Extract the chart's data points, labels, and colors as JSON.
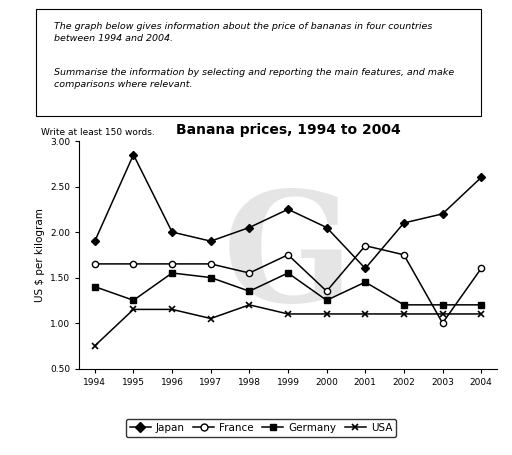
{
  "title": "Banana prices, 1994 to 2004",
  "ylabel": "US $ per kilogram",
  "years": [
    1994,
    1995,
    1996,
    1997,
    1998,
    1999,
    2000,
    2001,
    2002,
    2003,
    2004
  ],
  "japan": [
    1.9,
    2.85,
    2.0,
    1.9,
    2.05,
    2.25,
    2.05,
    1.6,
    2.1,
    2.2,
    2.6
  ],
  "france": [
    1.65,
    1.65,
    1.65,
    1.65,
    1.55,
    1.75,
    1.35,
    1.85,
    1.75,
    1.0,
    1.6
  ],
  "germany": [
    1.4,
    1.25,
    1.55,
    1.5,
    1.35,
    1.55,
    1.25,
    1.45,
    1.2,
    1.2,
    1.2
  ],
  "usa": [
    0.75,
    1.15,
    1.15,
    1.05,
    1.2,
    1.1,
    1.1,
    1.1,
    1.1,
    1.1,
    1.1
  ],
  "ylim": [
    0.5,
    3.0
  ],
  "yticks": [
    0.5,
    1.0,
    1.5,
    2.0,
    2.5,
    3.0
  ],
  "box_text_para1": "The graph below gives information about the price of bananas in four countries\nbetween 1994 and 2004.",
  "box_text_para2": "Summarise the information by selecting and reporting the main features, and make\ncomparisons where relevant.",
  "below_box_text": "Write at least 150 words.",
  "background_color": "#ffffff",
  "watermark_text": "G"
}
